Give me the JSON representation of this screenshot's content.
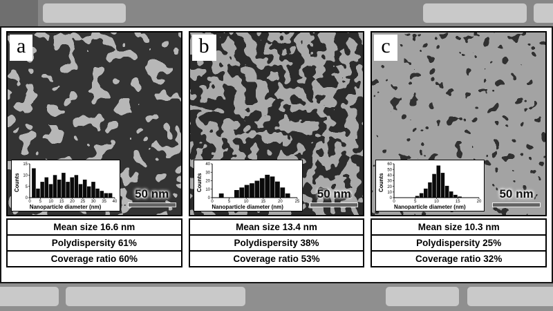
{
  "panels": [
    {
      "letter": "a",
      "scale_label": "50 nm",
      "stats": [
        "Mean size 16.6 nm",
        "Polydispersity 61%",
        "Coverage ratio 60%"
      ]
    },
    {
      "letter": "b",
      "scale_label": "50 nm",
      "stats": [
        "Mean size 13.4 nm",
        "Polydispersity 38%",
        "Coverage ratio 53%"
      ]
    },
    {
      "letter": "c",
      "scale_label": "50 nm",
      "stats": [
        "Mean size 10.3 nm",
        "Polydispersity 25%",
        "Coverage ratio 32%"
      ]
    }
  ],
  "chart_data": [
    {
      "type": "bar",
      "name": "nanoparticle-size-distribution-a",
      "xlabel": "Nanoparticle diameter (nm)",
      "ylabel": "Counts",
      "xlim": [
        0,
        40
      ],
      "ylim": [
        0,
        15
      ],
      "xticks": [
        0,
        5,
        10,
        15,
        20,
        25,
        30,
        35,
        40
      ],
      "yticks": [
        0,
        5,
        10,
        15
      ],
      "bin_start": 1,
      "bin_width": 2,
      "counts": [
        13,
        4,
        7,
        9,
        6,
        10,
        8,
        11,
        7,
        9,
        10,
        6,
        8,
        5,
        7,
        4,
        3,
        2,
        2
      ]
    },
    {
      "type": "bar",
      "name": "nanoparticle-size-distribution-b",
      "xlabel": "Nanoparticle diameter (nm)",
      "ylabel": "Counts",
      "xlim": [
        0,
        25
      ],
      "ylim": [
        0,
        40
      ],
      "xticks": [
        0,
        5,
        10,
        15,
        20,
        25
      ],
      "yticks": [
        0,
        10,
        20,
        30,
        40
      ],
      "bin_start": 2,
      "bin_width": 1.5,
      "counts": [
        5,
        0,
        0,
        9,
        12,
        15,
        17,
        20,
        23,
        27,
        25,
        19,
        12,
        5
      ]
    },
    {
      "type": "bar",
      "name": "nanoparticle-size-distribution-c",
      "xlabel": "Nanoparticle diameter (nm)",
      "ylabel": "Counts",
      "xlim": [
        0,
        20
      ],
      "ylim": [
        0,
        60
      ],
      "xticks": [
        0,
        5,
        10,
        15,
        20
      ],
      "yticks": [
        0,
        10,
        20,
        30,
        40,
        50,
        60
      ],
      "bin_start": 5,
      "bin_width": 1,
      "counts": [
        3,
        8,
        16,
        27,
        42,
        57,
        44,
        21,
        11,
        5,
        2
      ]
    }
  ]
}
